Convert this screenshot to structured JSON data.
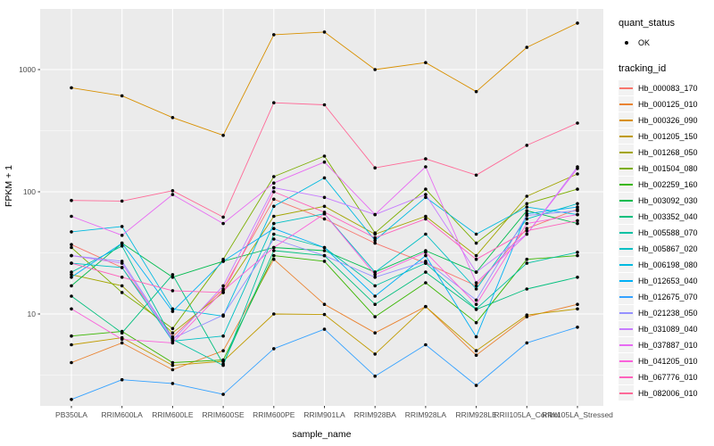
{
  "chart_data": {
    "type": "line",
    "title": "",
    "xlabel": "sample_name",
    "ylabel": "FPKM + 1",
    "y_scale": "log10",
    "y_ticks": [
      10,
      100,
      1000
    ],
    "y_tick_labels": [
      "10",
      "100",
      "1000"
    ],
    "y_minor_ticks": [
      3.162,
      31.623,
      316.228
    ],
    "ylim": [
      1.77,
      3130
    ],
    "grid": "white major and minor gridlines on gray panel",
    "legend_position": "right",
    "point_marker": "small black dot on every data point",
    "categories": [
      "PB350LA",
      "RRIM600LA",
      "RRIM600LE",
      "RRIM600SE",
      "RRIM600PE",
      "RRIM901LA",
      "RRIM928BA",
      "RRIM928LA",
      "RRIM928LE",
      "RRII105LA_Control",
      "RRII105LA_Stressed"
    ],
    "series": [
      {
        "name": "Hb_000083_170",
        "color": "#F8766D",
        "values": [
          37,
          24,
          6.5,
          16,
          87,
          60,
          38,
          26,
          17,
          50,
          72
        ]
      },
      {
        "name": "Hb_000125_010",
        "color": "#EA8331",
        "values": [
          4.0,
          5.8,
          3.5,
          5.0,
          28,
          12,
          7.0,
          11.5,
          4.6,
          9.5,
          12
        ]
      },
      {
        "name": "Hb_000326_090",
        "color": "#D89000",
        "values": [
          710,
          610,
          405,
          290,
          1930,
          2030,
          1000,
          1140,
          660,
          1520,
          2400
        ]
      },
      {
        "name": "Hb_001205_150",
        "color": "#C09B00",
        "values": [
          5.6,
          6.4,
          3.8,
          4.1,
          10,
          9.9,
          4.7,
          11.5,
          5.0,
          9.8,
          11
        ]
      },
      {
        "name": "Hb_001268_050",
        "color": "#A3A500",
        "values": [
          21,
          17,
          7.0,
          15,
          63,
          76,
          45,
          63,
          30,
          92,
          140
        ]
      },
      {
        "name": "Hb_001504_080",
        "color": "#7CAE00",
        "values": [
          35,
          15,
          7.6,
          28,
          133,
          196,
          46,
          105,
          38,
          80,
          105
        ]
      },
      {
        "name": "Hb_002259_160",
        "color": "#39B600",
        "values": [
          6.6,
          7.2,
          4.0,
          4.2,
          30,
          27,
          9.5,
          18,
          8.5,
          28,
          30
        ]
      },
      {
        "name": "Hb_003092_030",
        "color": "#00BB4E",
        "values": [
          17,
          38,
          20,
          27,
          35,
          33,
          22,
          33,
          22,
          70,
          55
        ]
      },
      {
        "name": "Hb_003352_040",
        "color": "#00BF7D",
        "values": [
          14,
          7.0,
          21,
          3.9,
          33,
          30,
          12,
          22,
          10.9,
          16,
          20
        ]
      },
      {
        "name": "Hb_005588_070",
        "color": "#00C1A3",
        "values": [
          22,
          36,
          6.2,
          3.8,
          45,
          35,
          17,
          26,
          11,
          26,
          32
        ]
      },
      {
        "name": "Hb_005867_020",
        "color": "#00BFC4",
        "values": [
          26,
          24,
          6.0,
          6.6,
          55,
          66,
          22,
          45,
          16,
          60,
          80
        ]
      },
      {
        "name": "Hb_006198_080",
        "color": "#00BAE0",
        "values": [
          47,
          52,
          11,
          9.6,
          76,
          130,
          40,
          90,
          45,
          75,
          65
        ]
      },
      {
        "name": "Hb_012653_040",
        "color": "#00B0F6",
        "values": [
          20,
          38,
          10.5,
          27,
          50,
          35,
          14,
          30,
          6.5,
          66,
          75
        ]
      },
      {
        "name": "Hb_012675_070",
        "color": "#35A2FF",
        "values": [
          2.0,
          2.9,
          2.7,
          2.2,
          5.2,
          7.5,
          3.1,
          5.6,
          2.6,
          5.8,
          7.8
        ]
      },
      {
        "name": "Hb_021238_050",
        "color": "#9590FF",
        "values": [
          30,
          27,
          6.3,
          9.8,
          41,
          30,
          20,
          27,
          13,
          64,
          70
        ]
      },
      {
        "name": "Hb_031089_040",
        "color": "#C77CFF",
        "values": [
          30,
          26,
          6.1,
          17,
          108,
          90,
          65,
          95,
          22,
          45,
          160
        ]
      },
      {
        "name": "Hb_037887_010",
        "color": "#E76BF3",
        "values": [
          63,
          44,
          95,
          55,
          118,
          175,
          65,
          160,
          18,
          45,
          155
        ]
      },
      {
        "name": "Hb_041205_010",
        "color": "#FA62DB",
        "values": [
          11,
          6.2,
          5.8,
          15.5,
          35,
          66,
          21,
          32,
          12,
          55,
          65
        ]
      },
      {
        "name": "Hb_067776_010",
        "color": "#FF62BC",
        "values": [
          26,
          20,
          15.5,
          15,
          100,
          68,
          42,
          60,
          28,
          48,
          58
        ]
      },
      {
        "name": "Hb_082006_010",
        "color": "#FF6A98",
        "values": [
          85,
          84,
          102,
          62,
          535,
          515,
          157,
          186,
          137,
          240,
          365
        ]
      }
    ]
  },
  "legend": {
    "quant_status": {
      "title": "quant_status",
      "items": [
        {
          "label": "OK",
          "symbol": "point"
        }
      ]
    },
    "tracking": {
      "title": "tracking_id"
    }
  },
  "colors": {
    "panel_bg": "#EBEBEB",
    "grid_major": "#FFFFFF",
    "grid_minor": "#F5F5F5",
    "axis_text": "#4D4D4D",
    "tick_mark": "#333333",
    "point": "#000000",
    "legend_key_bg": "#F2F2F2"
  }
}
